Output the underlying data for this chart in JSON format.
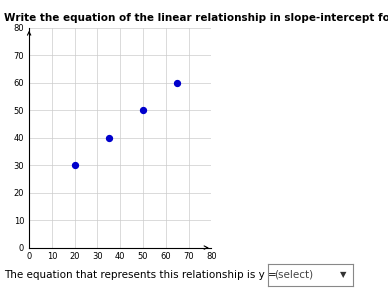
{
  "title": "Write the equation of the linear relationship in slope-intercept form.",
  "points_x": [
    20,
    35,
    50,
    65
  ],
  "points_y": [
    30,
    40,
    50,
    60
  ],
  "point_color": "#0000cc",
  "point_size": 18,
  "xlim": [
    0,
    80
  ],
  "ylim": [
    0,
    80
  ],
  "xticks": [
    0,
    10,
    20,
    30,
    40,
    50,
    60,
    70,
    80
  ],
  "yticks": [
    0,
    10,
    20,
    30,
    40,
    50,
    60,
    70,
    80
  ],
  "grid_color": "#cccccc",
  "background_color": "#ffffff",
  "footer_text": "The equation that represents this relationship is y =",
  "dropdown_text": "(select)",
  "title_fontsize": 7.5,
  "tick_fontsize": 6,
  "footer_fontsize": 7.5
}
